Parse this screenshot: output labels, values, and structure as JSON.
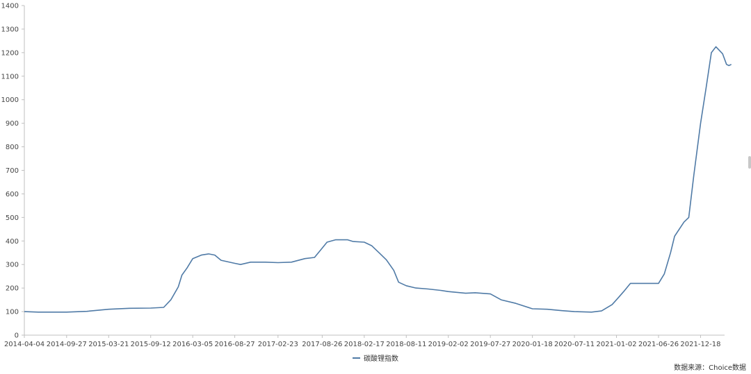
{
  "chart_data": {
    "type": "line",
    "title": "",
    "xlabel": "",
    "ylabel": "",
    "ylim": [
      0,
      1400
    ],
    "yticks": [
      0,
      100,
      200,
      300,
      400,
      500,
      600,
      700,
      800,
      900,
      1000,
      1100,
      1200,
      1300,
      1400
    ],
    "xticks": [
      "2014-04-04",
      "2014-09-27",
      "2015-03-21",
      "2015-09-12",
      "2016-03-05",
      "2016-08-27",
      "2017-02-23",
      "2017-08-26",
      "2018-02-17",
      "2018-08-11",
      "2019-02-02",
      "2019-07-27",
      "2020-01-18",
      "2020-07-11",
      "2021-01-02",
      "2021-06-26",
      "2021-12-18"
    ],
    "grid": false,
    "legend_position": "bottom-center",
    "series": [
      {
        "name": "碳酸锂指数",
        "color": "#4f7aa6",
        "points": [
          [
            "2014-04-04",
            100
          ],
          [
            "2014-06-01",
            98
          ],
          [
            "2014-09-27",
            98
          ],
          [
            "2014-12-20",
            101
          ],
          [
            "2015-03-21",
            110
          ],
          [
            "2015-06-15",
            114
          ],
          [
            "2015-09-12",
            115
          ],
          [
            "2015-11-05",
            118
          ],
          [
            "2015-12-05",
            150
          ],
          [
            "2016-01-05",
            205
          ],
          [
            "2016-01-20",
            255
          ],
          [
            "2016-02-10",
            285
          ],
          [
            "2016-03-05",
            325
          ],
          [
            "2016-04-10",
            340
          ],
          [
            "2016-05-10",
            345
          ],
          [
            "2016-06-05",
            340
          ],
          [
            "2016-07-01",
            318
          ],
          [
            "2016-08-27",
            305
          ],
          [
            "2016-09-20",
            300
          ],
          [
            "2016-11-01",
            310
          ],
          [
            "2017-01-01",
            310
          ],
          [
            "2017-02-23",
            308
          ],
          [
            "2017-04-20",
            310
          ],
          [
            "2017-06-15",
            325
          ],
          [
            "2017-07-25",
            330
          ],
          [
            "2017-08-26",
            370
          ],
          [
            "2017-09-15",
            395
          ],
          [
            "2017-10-20",
            405
          ],
          [
            "2017-12-10",
            405
          ],
          [
            "2018-01-01",
            398
          ],
          [
            "2018-02-17",
            395
          ],
          [
            "2018-03-20",
            380
          ],
          [
            "2018-04-20",
            350
          ],
          [
            "2018-05-20",
            320
          ],
          [
            "2018-06-20",
            275
          ],
          [
            "2018-07-10",
            225
          ],
          [
            "2018-08-11",
            210
          ],
          [
            "2018-09-20",
            200
          ],
          [
            "2018-11-10",
            196
          ],
          [
            "2019-01-01",
            190
          ],
          [
            "2019-02-02",
            185
          ],
          [
            "2019-04-15",
            178
          ],
          [
            "2019-05-25",
            180
          ],
          [
            "2019-07-27",
            175
          ],
          [
            "2019-09-10",
            150
          ],
          [
            "2019-11-10",
            135
          ],
          [
            "2020-01-18",
            112
          ],
          [
            "2020-03-20",
            110
          ],
          [
            "2020-05-20",
            104
          ],
          [
            "2020-07-11",
            100
          ],
          [
            "2020-09-20",
            98
          ],
          [
            "2020-11-01",
            103
          ],
          [
            "2020-12-15",
            130
          ],
          [
            "2021-01-02",
            150
          ],
          [
            "2021-02-01",
            185
          ],
          [
            "2021-03-01",
            220
          ],
          [
            "2021-04-20",
            220
          ],
          [
            "2021-06-26",
            220
          ],
          [
            "2021-07-20",
            260
          ],
          [
            "2021-08-15",
            350
          ],
          [
            "2021-09-01",
            420
          ],
          [
            "2021-10-10",
            480
          ],
          [
            "2021-10-30",
            500
          ],
          [
            "2021-11-20",
            680
          ],
          [
            "2021-12-18",
            900
          ],
          [
            "2022-01-10",
            1050
          ],
          [
            "2022-02-01",
            1200
          ],
          [
            "2022-02-20",
            1225
          ],
          [
            "2022-03-20",
            1195
          ],
          [
            "2022-04-05",
            1150
          ],
          [
            "2022-04-15",
            1145
          ],
          [
            "2022-04-25",
            1150
          ]
        ]
      }
    ]
  },
  "source_note": "数据来源：Choice数据"
}
